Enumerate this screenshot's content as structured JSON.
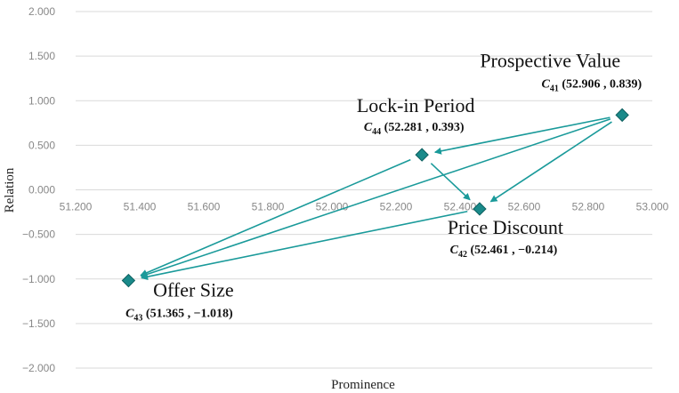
{
  "chart_data": {
    "type": "scatter",
    "xlabel": "Prominence",
    "ylabel": "Relation",
    "xlim": [
      51.2,
      53.0
    ],
    "ylim": [
      -2.0,
      2.0
    ],
    "x_ticks": [
      51.2,
      51.4,
      51.6,
      51.8,
      52.0,
      52.2,
      52.4,
      52.6,
      52.8,
      53.0
    ],
    "x_tick_labels": [
      "51.200",
      "51.400",
      "51.600",
      "51.800",
      "52.000",
      "52.200",
      "52.400",
      "52.600",
      "52.800",
      "53.000"
    ],
    "y_ticks": [
      2.0,
      1.5,
      1.0,
      0.5,
      0.0,
      -0.5,
      -1.0,
      -1.5,
      -2.0
    ],
    "y_tick_labels": [
      "2.000",
      "1.500",
      "1.000",
      "0.500",
      "0.000",
      "−0.500",
      "−1.000",
      "−1.500",
      "−2.000"
    ],
    "grid": "horizontal",
    "marker_color": "#1a8a8a",
    "arrow_color": "#1a9a9a",
    "points": [
      {
        "id": "C41",
        "name": "Prospective Value",
        "symbol": "C",
        "sub": "41",
        "coords": "(52.906 , 0.839)",
        "x": 52.906,
        "y": 0.839
      },
      {
        "id": "C44",
        "name": "Lock-in Period",
        "symbol": "C",
        "sub": "44",
        "coords": "(52.281 , 0.393)",
        "x": 52.281,
        "y": 0.393
      },
      {
        "id": "C42",
        "name": "Price Discount",
        "symbol": "C",
        "sub": "42",
        "coords": "(52.461 , −0.214)",
        "x": 52.461,
        "y": -0.214
      },
      {
        "id": "C43",
        "name": "Offer Size",
        "symbol": "C",
        "sub": "43",
        "coords": "(51.365 , −1.018)",
        "x": 51.365,
        "y": -1.018
      }
    ],
    "arrows": [
      {
        "from": "C41",
        "to": "C44"
      },
      {
        "from": "C41",
        "to": "C42"
      },
      {
        "from": "C41",
        "to": "C43"
      },
      {
        "from": "C44",
        "to": "C42"
      },
      {
        "from": "C44",
        "to": "C43"
      },
      {
        "from": "C42",
        "to": "C43"
      }
    ]
  }
}
